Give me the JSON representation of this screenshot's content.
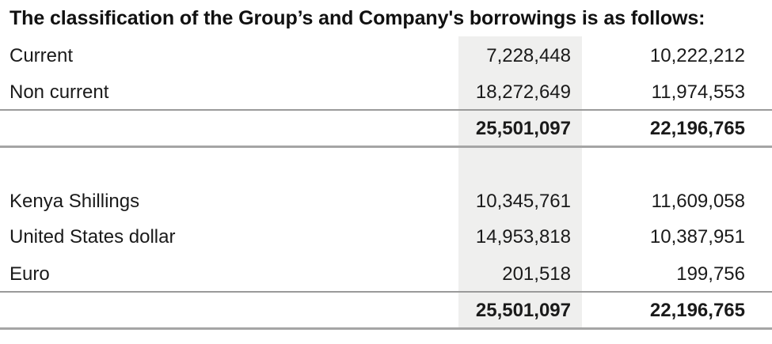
{
  "title": "The classification of the Group’s and Company's borrowings is as follows:",
  "maturity": {
    "rows": [
      {
        "label": "Current",
        "group": "7,228,448",
        "company": "10,222,212"
      },
      {
        "label": "Non current",
        "group": "18,272,649",
        "company": "11,974,553"
      }
    ],
    "total": {
      "group": "25,501,097",
      "company": "22,196,765"
    }
  },
  "currency": {
    "rows": [
      {
        "label": "Kenya Shillings",
        "group": "10,345,761",
        "company": "11,609,058"
      },
      {
        "label": "United States dollar",
        "group": "14,953,818",
        "company": "10,387,951"
      },
      {
        "label": "Euro",
        "group": "201,518",
        "company": "199,756"
      }
    ],
    "total": {
      "group": "25,501,097",
      "company": "22,196,765"
    }
  }
}
